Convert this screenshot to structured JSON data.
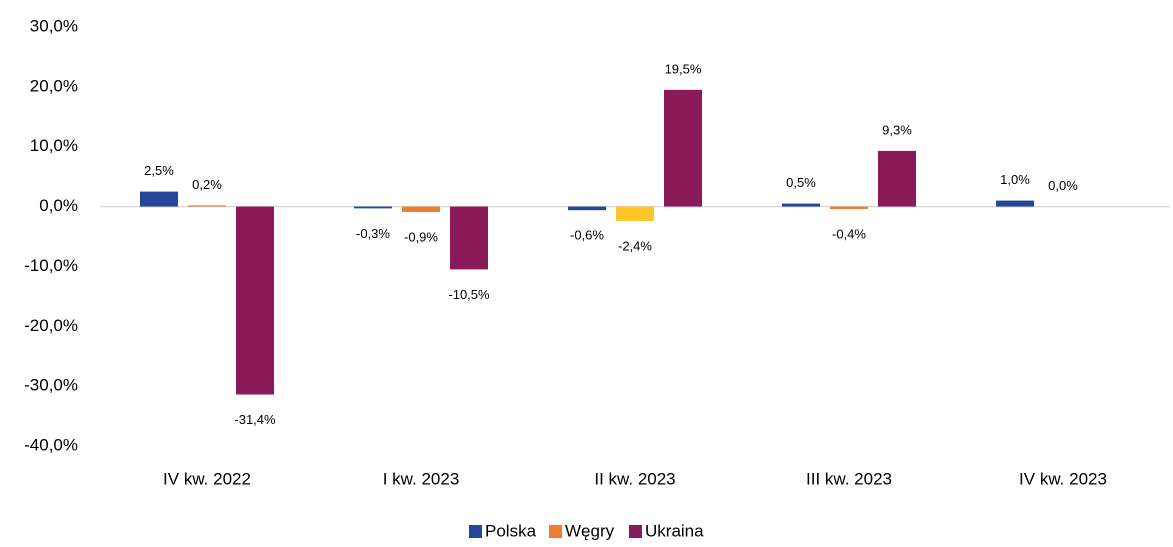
{
  "chart_data": {
    "type": "bar",
    "categories": [
      "IV kw. 2022",
      "I kw. 2023",
      "II kw. 2023",
      "III kw. 2023",
      "IV kw. 2023"
    ],
    "series": [
      {
        "name": "Polska",
        "color": "#25469a",
        "values": [
          2.5,
          -0.3,
          -0.6,
          0.5,
          1.0
        ],
        "value_labels": [
          "2,5%",
          "-0,3%",
          "-0,6%",
          "0,5%",
          "1,0%"
        ]
      },
      {
        "name": "Węgry",
        "color": "#ed7d31",
        "colors": [
          "#ed7d31",
          "#ed7d31",
          "#ffc629",
          "#ed7d31",
          "#ed7d31"
        ],
        "values": [
          0.2,
          -0.9,
          -2.4,
          -0.4,
          0.0
        ],
        "value_labels": [
          "0,2%",
          "-0,9%",
          "-2,4%",
          "-0,4%",
          "0,0%"
        ]
      },
      {
        "name": "Ukraina",
        "color": "#8b1a5b",
        "values": [
          -31.4,
          -10.5,
          19.5,
          9.3,
          null
        ],
        "value_labels": [
          "-31,4%",
          "-10,5%",
          "19,5%",
          "9,3%",
          null
        ]
      }
    ],
    "ylim": [
      -40,
      30
    ],
    "yticks": [
      {
        "value": 30,
        "label": "30,0%"
      },
      {
        "value": 20,
        "label": "20,0%"
      },
      {
        "value": 10,
        "label": "10,0%"
      },
      {
        "value": 0,
        "label": "0,0%"
      },
      {
        "value": -10,
        "label": "-10,0%"
      },
      {
        "value": -20,
        "label": "-20,0%"
      },
      {
        "value": -30,
        "label": "-30,0%"
      },
      {
        "value": -40,
        "label": "-40,0%"
      }
    ],
    "grid": false,
    "legend": "bottom"
  }
}
